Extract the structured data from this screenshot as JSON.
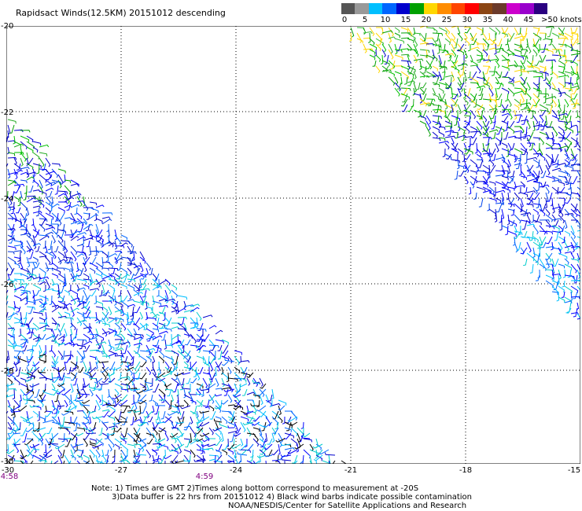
{
  "title": "Rapidsact Winds(12.5KM) 20151012 descending",
  "legend": {
    "colors": [
      "#555555",
      "#999999",
      "#00bfff",
      "#0066ff",
      "#0000cc",
      "#00a000",
      "#ffd700",
      "#ff8c00",
      "#ff4500",
      "#ff0000",
      "#8b4513",
      "#6b3a2a",
      "#cc00cc",
      "#9900cc",
      "#2a0080"
    ],
    "labels": [
      "0",
      "5",
      "10",
      "15",
      "20",
      "25",
      "30",
      "35",
      "40",
      "45"
    ],
    "unit_label": ">50 knots"
  },
  "map": {
    "y_ticks": [
      "-20",
      "-22",
      "-24",
      "-26",
      "-28",
      "-30"
    ],
    "x_ticks": [
      "-30",
      "-27",
      "-24",
      "-21",
      "-18",
      "-15"
    ],
    "times": [
      "4:58",
      "4:59"
    ]
  },
  "notes": [
    "Note: 1) Times are GMT 2)Times along bottom correspond to measurement at -20S",
    "3)Data buffer is 22 hrs from 20151012 4) Black wind barbs indicate possible contamination",
    "NOAA/NESDIS/Center for Satellite Applications and Research"
  ]
}
